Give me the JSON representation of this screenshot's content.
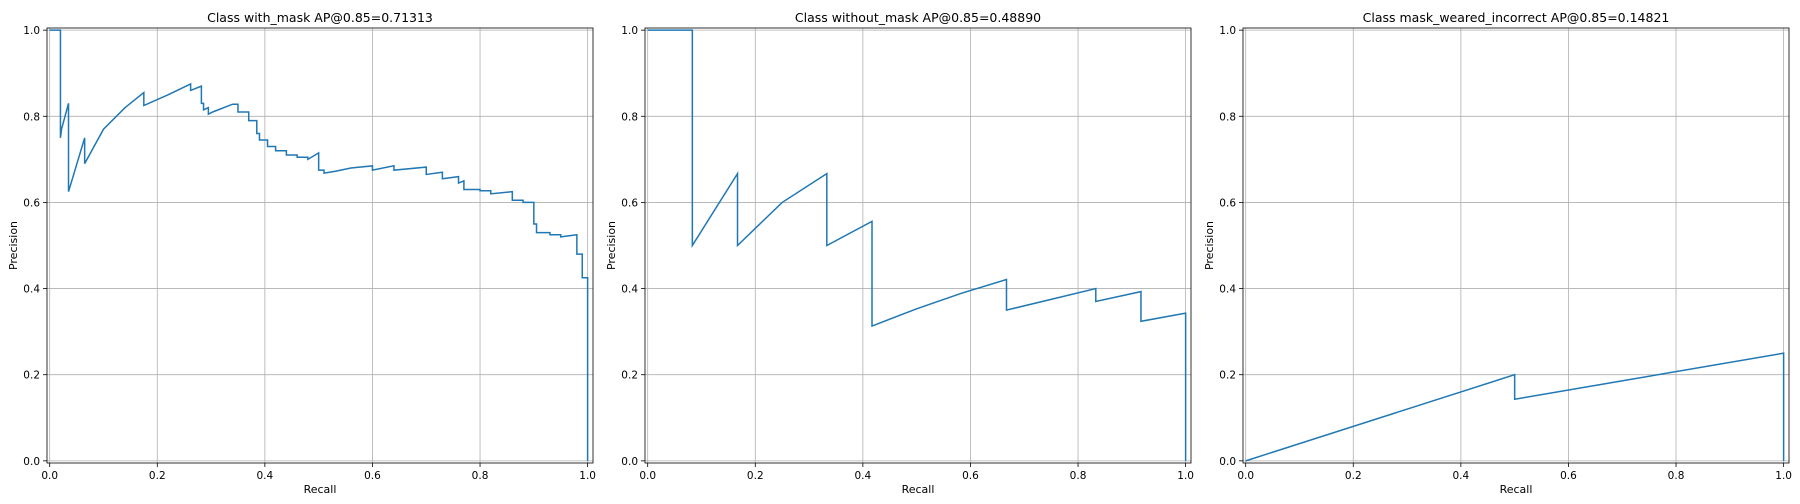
{
  "chart_data": [
    {
      "type": "line",
      "title": "Class with_mask AP@0.85=0.71313",
      "xlabel": "Recall",
      "ylabel": "Precision",
      "xlim": [
        -0.005,
        1.01
      ],
      "ylim": [
        -0.005,
        1.005
      ],
      "xticks": [
        "0.0",
        "0.2",
        "0.4",
        "0.6",
        "0.8",
        "1.0"
      ],
      "yticks": [
        "0.0",
        "0.2",
        "0.4",
        "0.6",
        "0.8",
        "1.0"
      ],
      "grid": true,
      "color": "#1f77b4",
      "x": [
        0.0,
        0.02,
        0.02,
        0.022,
        0.035,
        0.035,
        0.065,
        0.065,
        0.1,
        0.14,
        0.175,
        0.175,
        0.22,
        0.262,
        0.262,
        0.282,
        0.282,
        0.286,
        0.286,
        0.295,
        0.295,
        0.303,
        0.303,
        0.34,
        0.35,
        0.35,
        0.36,
        0.37,
        0.37,
        0.385,
        0.385,
        0.39,
        0.39,
        0.405,
        0.405,
        0.42,
        0.42,
        0.44,
        0.44,
        0.46,
        0.46,
        0.48,
        0.48,
        0.5,
        0.5,
        0.51,
        0.51,
        0.53,
        0.53,
        0.56,
        0.56,
        0.6,
        0.6,
        0.64,
        0.64,
        0.7,
        0.7,
        0.73,
        0.73,
        0.76,
        0.76,
        0.77,
        0.77,
        0.8,
        0.8,
        0.82,
        0.82,
        0.86,
        0.86,
        0.88,
        0.88,
        0.9,
        0.9,
        0.905,
        0.905,
        0.93,
        0.93,
        0.95,
        0.95,
        0.98,
        0.98,
        0.99,
        0.99,
        1.0,
        1.0
      ],
      "y": [
        1.0,
        1.0,
        0.75,
        0.77,
        0.83,
        0.625,
        0.75,
        0.69,
        0.77,
        0.82,
        0.855,
        0.825,
        0.85,
        0.875,
        0.86,
        0.87,
        0.83,
        0.83,
        0.815,
        0.82,
        0.805,
        0.81,
        0.81,
        0.828,
        0.828,
        0.81,
        0.81,
        0.81,
        0.79,
        0.79,
        0.76,
        0.76,
        0.745,
        0.745,
        0.73,
        0.73,
        0.72,
        0.72,
        0.71,
        0.71,
        0.705,
        0.705,
        0.7,
        0.715,
        0.675,
        0.675,
        0.668,
        0.672,
        0.672,
        0.68,
        0.68,
        0.685,
        0.675,
        0.685,
        0.675,
        0.682,
        0.665,
        0.67,
        0.655,
        0.66,
        0.645,
        0.65,
        0.63,
        0.63,
        0.627,
        0.627,
        0.62,
        0.625,
        0.605,
        0.605,
        0.6,
        0.6,
        0.55,
        0.55,
        0.53,
        0.53,
        0.525,
        0.525,
        0.52,
        0.525,
        0.48,
        0.48,
        0.425,
        0.425,
        0.0
      ]
    },
    {
      "type": "line",
      "title": "Class without_mask AP@0.85=0.48890",
      "xlabel": "Recall",
      "ylabel": "Precision",
      "xlim": [
        -0.005,
        1.01
      ],
      "ylim": [
        -0.005,
        1.005
      ],
      "xticks": [
        "0.0",
        "0.2",
        "0.4",
        "0.6",
        "0.8",
        "1.0"
      ],
      "yticks": [
        "0.0",
        "0.2",
        "0.4",
        "0.6",
        "0.8",
        "1.0"
      ],
      "grid": true,
      "color": "#1f77b4",
      "x": [
        0.0,
        0.083,
        0.083,
        0.167,
        0.167,
        0.25,
        0.333,
        0.333,
        0.417,
        0.417,
        0.5,
        0.583,
        0.667,
        0.667,
        0.75,
        0.833,
        0.833,
        0.917,
        0.917,
        1.0,
        1.0
      ],
      "y": [
        1.0,
        1.0,
        0.5,
        0.667,
        0.5,
        0.6,
        0.667,
        0.5,
        0.556,
        0.313,
        0.353,
        0.389,
        0.421,
        0.35,
        0.375,
        0.4,
        0.37,
        0.393,
        0.324,
        0.343,
        0.0
      ]
    },
    {
      "type": "line",
      "title": "Class mask_weared_incorrect AP@0.85=0.14821",
      "xlabel": "Recall",
      "ylabel": "Precision",
      "xlim": [
        -0.005,
        1.01
      ],
      "ylim": [
        -0.005,
        1.005
      ],
      "xticks": [
        "0.0",
        "0.2",
        "0.4",
        "0.6",
        "0.8",
        "1.0"
      ],
      "yticks": [
        "0.0",
        "0.2",
        "0.4",
        "0.6",
        "0.8",
        "1.0"
      ],
      "grid": true,
      "color": "#1f77b4",
      "x": [
        0.0,
        0.5,
        0.5,
        1.0,
        1.0
      ],
      "y": [
        0.0,
        0.2,
        0.143,
        0.25,
        0.0
      ]
    }
  ]
}
